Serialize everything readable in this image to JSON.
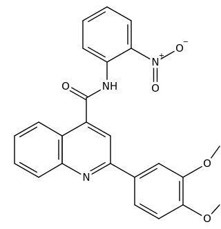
{
  "molecule": {
    "atoms": [
      {
        "label": "O"
      },
      {
        "label": "NH"
      },
      {
        "label": "N",
        "charge": "+"
      },
      {
        "label": "O",
        "charge": "−"
      },
      {
        "label": "O"
      },
      {
        "label": "N"
      },
      {
        "label": "O"
      },
      {
        "label": "O"
      }
    ]
  }
}
